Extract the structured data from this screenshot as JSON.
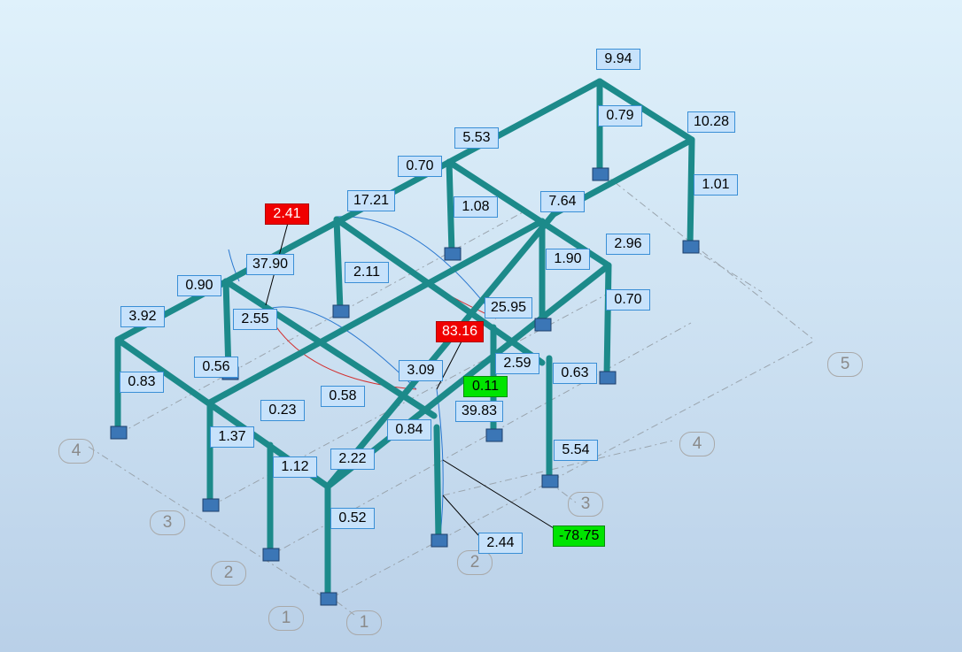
{
  "grid_axes": {
    "bottom": [
      "1",
      "1",
      "2",
      "2",
      "3",
      "3",
      "4",
      "4",
      "5"
    ]
  },
  "value_labels": [
    {
      "id": "v1",
      "text": "9.94",
      "state": "normal"
    },
    {
      "id": "v2",
      "text": "0.79",
      "state": "normal"
    },
    {
      "id": "v3",
      "text": "10.28",
      "state": "normal"
    },
    {
      "id": "v4",
      "text": "5.53",
      "state": "normal"
    },
    {
      "id": "v5",
      "text": "0.70",
      "state": "normal"
    },
    {
      "id": "v6",
      "text": "1.01",
      "state": "normal"
    },
    {
      "id": "v7",
      "text": "17.21",
      "state": "normal"
    },
    {
      "id": "v8",
      "text": "7.64",
      "state": "normal"
    },
    {
      "id": "v9",
      "text": "1.08",
      "state": "normal"
    },
    {
      "id": "v10",
      "text": "2.41",
      "state": "max"
    },
    {
      "id": "v11",
      "text": "2.96",
      "state": "normal"
    },
    {
      "id": "v12",
      "text": "1.90",
      "state": "normal"
    },
    {
      "id": "v13",
      "text": "37.90",
      "state": "normal"
    },
    {
      "id": "v14",
      "text": "0.90",
      "state": "normal"
    },
    {
      "id": "v15",
      "text": "2.11",
      "state": "normal"
    },
    {
      "id": "v16",
      "text": "0.70",
      "state": "normal"
    },
    {
      "id": "v17",
      "text": "25.95",
      "state": "normal"
    },
    {
      "id": "v18",
      "text": "3.92",
      "state": "normal"
    },
    {
      "id": "v19",
      "text": "2.55",
      "state": "normal"
    },
    {
      "id": "v20",
      "text": "83.16",
      "state": "max"
    },
    {
      "id": "v21",
      "text": "2.59",
      "state": "normal"
    },
    {
      "id": "v22",
      "text": "0.56",
      "state": "normal"
    },
    {
      "id": "v23",
      "text": "3.09",
      "state": "normal"
    },
    {
      "id": "v24",
      "text": "0.63",
      "state": "normal"
    },
    {
      "id": "v25",
      "text": "0.83",
      "state": "normal"
    },
    {
      "id": "v26",
      "text": "0.11",
      "state": "min"
    },
    {
      "id": "v27",
      "text": "0.58",
      "state": "normal"
    },
    {
      "id": "v28",
      "text": "0.23",
      "state": "normal"
    },
    {
      "id": "v29",
      "text": "39.83",
      "state": "normal"
    },
    {
      "id": "v30",
      "text": "0.84",
      "state": "normal"
    },
    {
      "id": "v31",
      "text": "1.37",
      "state": "normal"
    },
    {
      "id": "v32",
      "text": "5.54",
      "state": "normal"
    },
    {
      "id": "v33",
      "text": "2.22",
      "state": "normal"
    },
    {
      "id": "v34",
      "text": "1.12",
      "state": "normal"
    },
    {
      "id": "v35",
      "text": "0.52",
      "state": "normal"
    },
    {
      "id": "v36",
      "text": "2.44",
      "state": "normal"
    },
    {
      "id": "v37",
      "text": "-78.75",
      "state": "min"
    }
  ],
  "colors": {
    "member": "#1c8a8a",
    "member_edge": "#0a4f55",
    "base_plate": "#3b76b6",
    "grid_line": "#9aa4ad",
    "diagram_positive": "#d23030",
    "diagram_outline": "#2a78d0",
    "background_top": "#dff1fb",
    "background_bottom": "#b9d0e8"
  }
}
